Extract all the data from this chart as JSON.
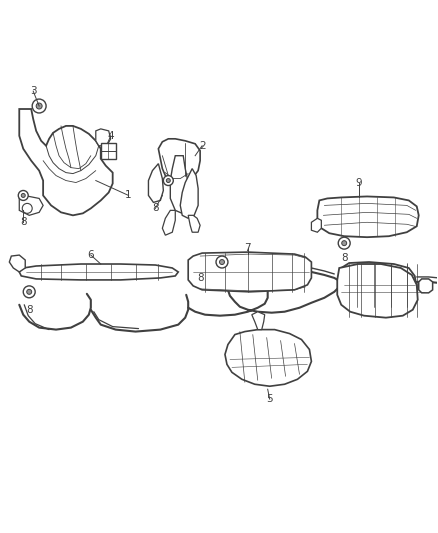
{
  "background_color": "#ffffff",
  "line_color": "#404040",
  "fig_width": 4.38,
  "fig_height": 5.33,
  "dpi": 100,
  "components": {
    "shield1_label": "1",
    "shield2_label": "2",
    "screw3_label": "3",
    "clip4_label": "4",
    "deflector5_label": "5",
    "strip6_label": "6",
    "catshield7_label": "7",
    "screw8_label": "8",
    "rearshield9_label": "9"
  }
}
